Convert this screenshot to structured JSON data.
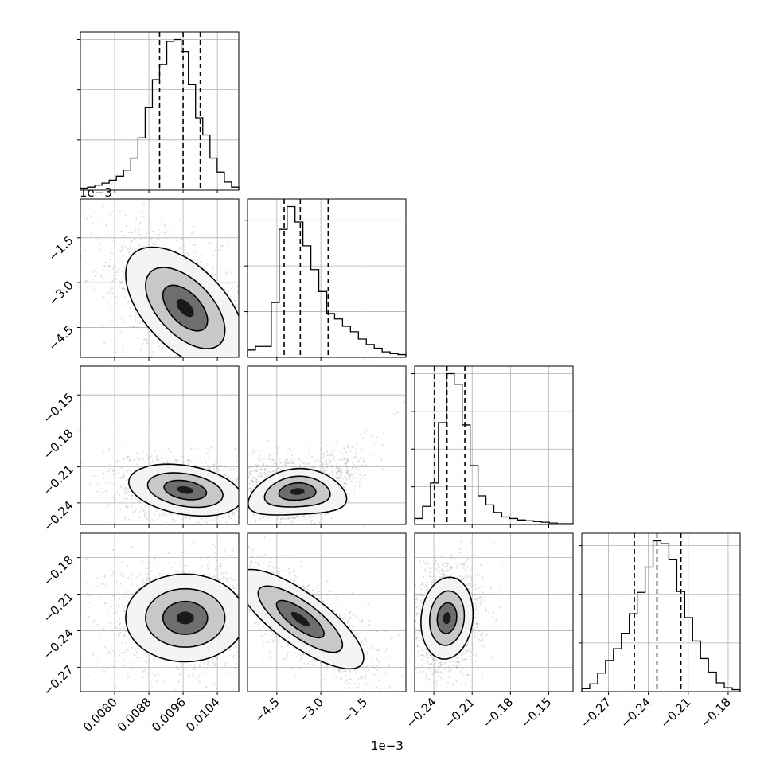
{
  "chart_data": {
    "type": "corner",
    "grid": true,
    "panels": [
      {
        "kind": "hist",
        "row": 0,
        "col": 0,
        "x_range": [
          0.0072,
          0.0109
        ],
        "bins_edges": [
          0.0072,
          0.0109
        ],
        "counts": [
          2,
          3,
          5,
          7,
          10,
          14,
          20,
          32,
          52,
          82,
          110,
          125,
          148,
          150,
          138,
          105,
          72,
          55,
          32,
          18,
          8,
          3
        ],
        "quantiles": [
          0.00905,
          0.0096,
          0.01
        ]
      },
      {
        "kind": "hist",
        "row": 1,
        "col": 1,
        "x_range": [
          -0.0055,
          -0.0001
        ],
        "counts": [
          8,
          12,
          12,
          60,
          140,
          165,
          148,
          122,
          96,
          72,
          48,
          42,
          34,
          28,
          20,
          14,
          10,
          6,
          4,
          3
        ],
        "quantiles": [
          -0.00425,
          -0.0037,
          -0.00275
        ]
      },
      {
        "kind": "hist",
        "row": 2,
        "col": 2,
        "x_range": [
          -0.255,
          -0.131
        ],
        "counts": [
          8,
          24,
          55,
          135,
          200,
          186,
          132,
          78,
          38,
          26,
          16,
          10,
          8,
          6,
          5,
          4,
          3,
          2,
          1,
          1
        ],
        "quantiles": [
          -0.2395,
          -0.2297,
          -0.2157
        ]
      },
      {
        "kind": "hist",
        "row": 3,
        "col": 3,
        "x_range": [
          -0.29,
          -0.171
        ],
        "counts": [
          3,
          8,
          19,
          32,
          44,
          60,
          80,
          102,
          128,
          155,
          152,
          136,
          103,
          76,
          52,
          34,
          20,
          9,
          4,
          2
        ],
        "quantiles": [
          -0.2505,
          -0.2335,
          -0.2155
        ]
      },
      {
        "kind": "2d",
        "row": 1,
        "col": 0,
        "x_range": [
          0.0072,
          0.0109
        ],
        "y_range": [
          -0.0055,
          -0.0002
        ],
        "center": [
          0.00965,
          -0.00385
        ],
        "sx": 0.00058,
        "sy": 0.00085,
        "rho": -0.55
      },
      {
        "kind": "2d",
        "row": 2,
        "col": 0,
        "x_range": [
          0.0072,
          0.0109
        ],
        "y_range": [
          -0.258,
          -0.126
        ],
        "center": [
          0.00965,
          -0.2293
        ],
        "sx": 0.00055,
        "sy": 0.009,
        "rho": -0.3
      },
      {
        "kind": "2d",
        "row": 2,
        "col": 1,
        "x_range": [
          -0.0055,
          -0.0001
        ],
        "y_range": [
          -0.258,
          -0.126
        ],
        "center": [
          -0.0038,
          -0.2305
        ],
        "sx": 0.0007,
        "sy": 0.008,
        "rho": 0.1,
        "curve": true
      },
      {
        "kind": "2d",
        "row": 3,
        "col": 0,
        "x_range": [
          0.0072,
          0.0109
        ],
        "y_range": [
          -0.29,
          -0.16
        ],
        "center": [
          0.00965,
          -0.2295
        ],
        "sx": 0.00058,
        "sy": 0.015,
        "rho": 0.0
      },
      {
        "kind": "2d",
        "row": 3,
        "col": 1,
        "x_range": [
          -0.0055,
          -0.0001
        ],
        "y_range": [
          -0.29,
          -0.16
        ],
        "center": [
          -0.0037,
          -0.2305
        ],
        "sx": 0.0009,
        "sy": 0.017,
        "rho": -0.78
      },
      {
        "kind": "2d",
        "row": 3,
        "col": 2,
        "x_range": [
          -0.255,
          -0.131
        ],
        "y_range": [
          -0.29,
          -0.16
        ],
        "center": [
          -0.2297,
          -0.2297
        ],
        "sx": 0.0085,
        "sy": 0.014,
        "rho": 0.1
      }
    ],
    "axes": {
      "x_ticks": [
        {
          "col": 0,
          "values": [
            0.008,
            0.0088,
            0.0096,
            0.0104
          ],
          "labels": [
            "0.0080",
            "0.0088",
            "0.0096",
            "0.0104"
          ]
        },
        {
          "col": 1,
          "values": [
            -0.0045,
            -0.003,
            -0.0015
          ],
          "labels": [
            "−4.5",
            "−3.0",
            "−1.5"
          ]
        },
        {
          "col": 2,
          "values": [
            -0.24,
            -0.21,
            -0.18,
            -0.15
          ],
          "labels": [
            "−0.24",
            "−0.21",
            "−0.18",
            "−0.15"
          ]
        },
        {
          "col": 3,
          "values": [
            -0.27,
            -0.24,
            -0.21,
            -0.18
          ],
          "labels": [
            "−0.27",
            "−0.24",
            "−0.21",
            "−0.18"
          ]
        }
      ],
      "y_ticks": [
        {
          "row": 1,
          "values": [
            -0.0015,
            -0.003,
            -0.0045
          ],
          "labels": [
            "−1.5",
            "−3.0",
            "−4.5"
          ]
        },
        {
          "row": 2,
          "values": [
            -0.15,
            -0.18,
            -0.21,
            -0.24
          ],
          "labels": [
            "−0.15",
            "−0.18",
            "−0.21",
            "−0.24"
          ]
        },
        {
          "row": 3,
          "values": [
            -0.18,
            -0.21,
            -0.24,
            -0.27
          ],
          "labels": [
            "−0.18",
            "−0.21",
            "−0.24",
            "−0.27"
          ]
        }
      ],
      "offset_text_y": "1e−3",
      "offset_text_x": "1e−3"
    }
  }
}
